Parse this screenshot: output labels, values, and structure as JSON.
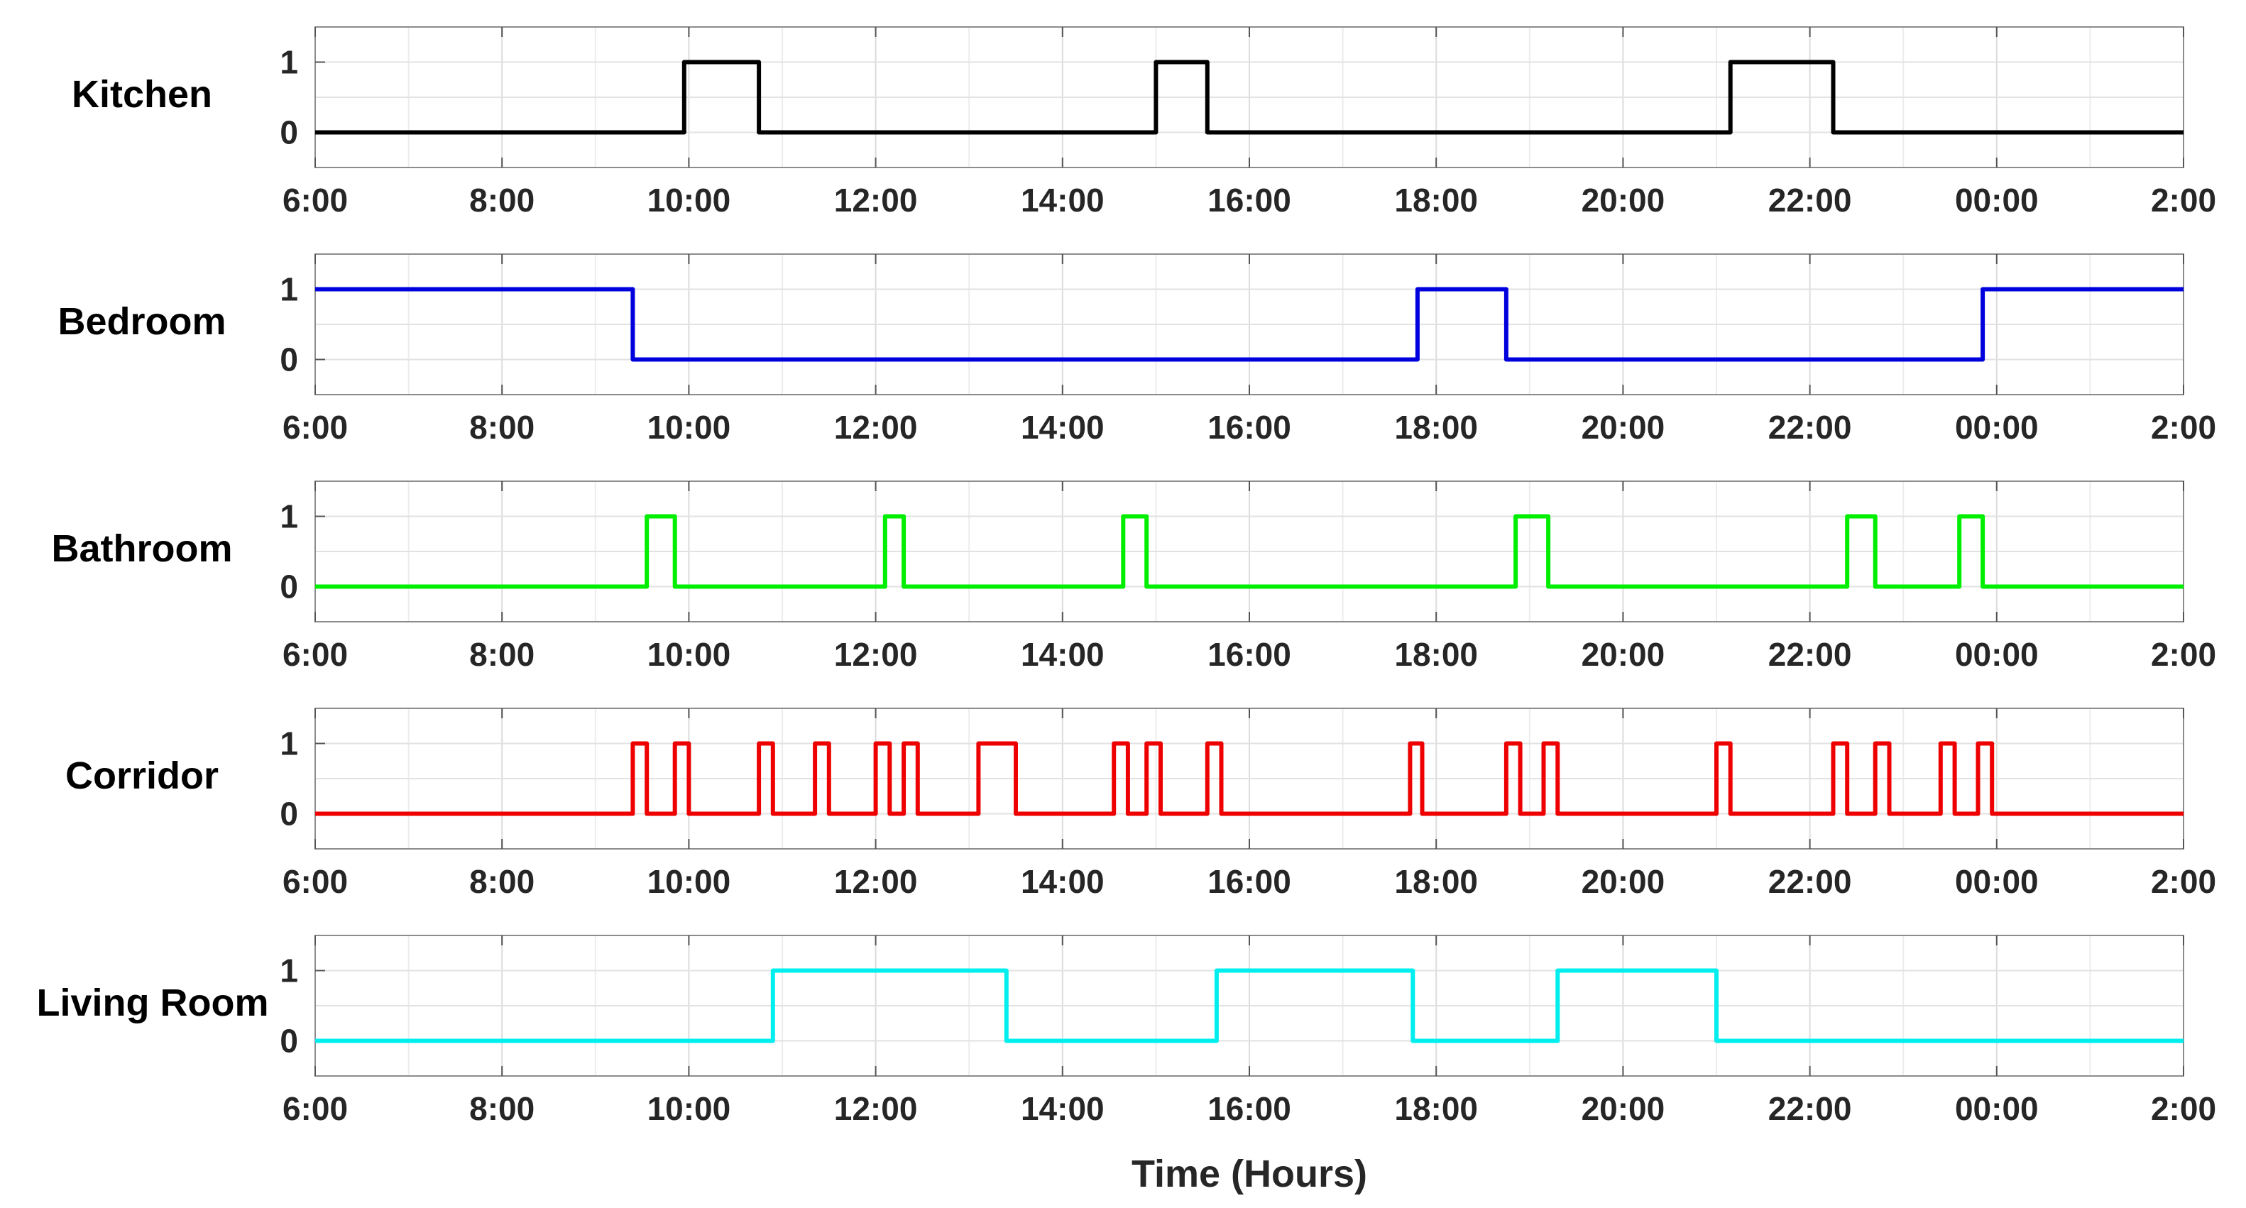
{
  "chart_data": {
    "type": "line",
    "subtype": "step",
    "xlabel": "Time (Hours)",
    "x_range_hours": [
      6,
      26
    ],
    "x_tick_labels": [
      "6:00",
      "8:00",
      "10:00",
      "12:00",
      "14:00",
      "16:00",
      "18:00",
      "20:00",
      "22:00",
      "00:00",
      "2:00"
    ],
    "y_ticks": [
      "0",
      "1"
    ],
    "ylim": [
      -0.5,
      1.5
    ],
    "grid": true,
    "series": [
      {
        "name": "Kitchen",
        "color": "#000000",
        "on_intervals": [
          [
            9.95,
            10.75
          ],
          [
            15.0,
            15.55
          ],
          [
            21.15,
            22.25
          ]
        ]
      },
      {
        "name": "Bedroom",
        "color": "#0000dd",
        "on_intervals": [
          [
            6.0,
            9.4
          ],
          [
            17.8,
            18.75
          ],
          [
            23.85,
            26.0
          ]
        ]
      },
      {
        "name": "Bathroom",
        "color": "#00ee00",
        "on_intervals": [
          [
            9.55,
            9.85
          ],
          [
            12.1,
            12.3
          ],
          [
            14.65,
            14.9
          ],
          [
            18.85,
            19.2
          ],
          [
            22.4,
            22.7
          ],
          [
            23.6,
            23.85
          ]
        ]
      },
      {
        "name": "Corridor",
        "color": "#ee0000",
        "on_intervals": [
          [
            9.4,
            9.55
          ],
          [
            9.85,
            10.0
          ],
          [
            10.75,
            10.9
          ],
          [
            11.35,
            11.5
          ],
          [
            12.0,
            12.15
          ],
          [
            12.3,
            12.45
          ],
          [
            13.1,
            13.5
          ],
          [
            14.55,
            14.7
          ],
          [
            14.9,
            15.05
          ],
          [
            15.55,
            15.7
          ],
          [
            17.72,
            17.85
          ],
          [
            18.75,
            18.9
          ],
          [
            19.15,
            19.3
          ],
          [
            21.0,
            21.15
          ],
          [
            22.25,
            22.4
          ],
          [
            22.7,
            22.85
          ],
          [
            23.4,
            23.55
          ],
          [
            23.8,
            23.95
          ]
        ]
      },
      {
        "name": "Living Room",
        "color": "#00eeee",
        "on_intervals": [
          [
            10.9,
            13.4
          ],
          [
            15.65,
            17.75
          ],
          [
            19.3,
            21.0
          ]
        ]
      }
    ]
  }
}
